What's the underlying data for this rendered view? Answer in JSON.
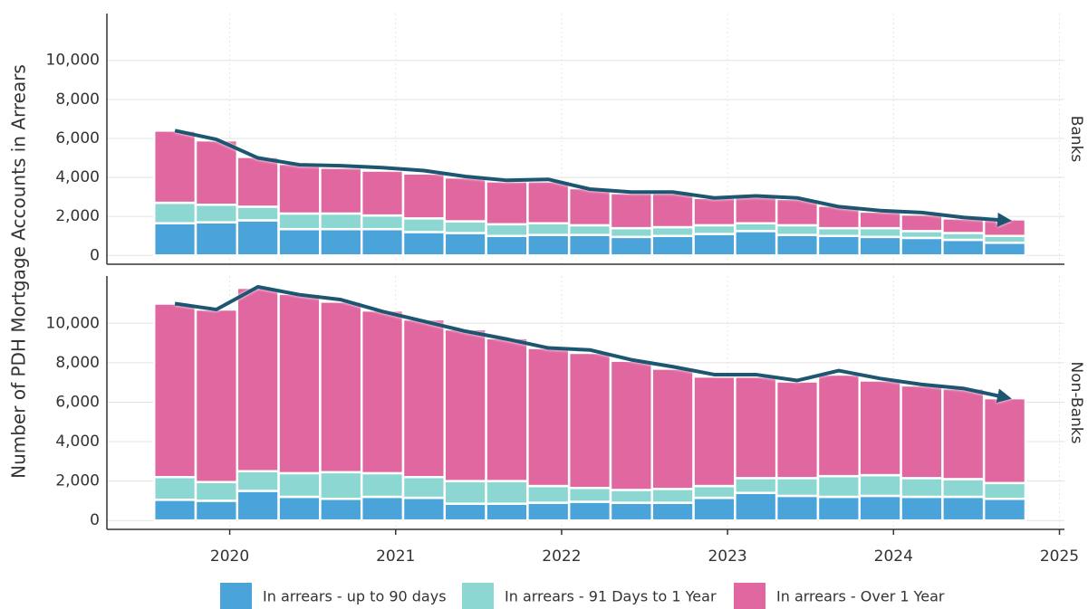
{
  "y_label": "Number of PDH Mortgage Accounts in Arrears",
  "chart_data": [
    {
      "type": "bar",
      "stacked": true,
      "panel": "Banks",
      "x": [
        2019.67,
        2019.92,
        2020.17,
        2020.42,
        2020.67,
        2020.92,
        2021.17,
        2021.42,
        2021.67,
        2021.92,
        2022.17,
        2022.42,
        2022.67,
        2022.92,
        2023.17,
        2023.42,
        2023.67,
        2023.92,
        2024.17,
        2024.42,
        2024.67
      ],
      "series": [
        {
          "name": "In arrears - up to 90 days",
          "color": "#4aa3d9",
          "values": [
            1650,
            1700,
            1800,
            1350,
            1350,
            1350,
            1200,
            1150,
            1000,
            1050,
            1050,
            950,
            1000,
            1100,
            1250,
            1050,
            1000,
            950,
            900,
            800,
            650
          ]
        },
        {
          "name": "In arrears - 91 Days to 1 Year",
          "color": "#8dd7d3",
          "values": [
            1050,
            900,
            700,
            800,
            800,
            700,
            700,
            600,
            600,
            600,
            500,
            450,
            450,
            450,
            400,
            500,
            400,
            450,
            350,
            350,
            350
          ]
        },
        {
          "name": "In arrears - Over 1 Year",
          "color": "#e0679f",
          "values": [
            3700,
            3300,
            2550,
            2550,
            2350,
            2300,
            2300,
            2250,
            2200,
            2150,
            1900,
            1800,
            1750,
            1400,
            1350,
            1350,
            1150,
            850,
            850,
            750,
            850
          ]
        }
      ],
      "trend": [
        6400,
        5950,
        5000,
        4650,
        4600,
        4500,
        4350,
        4050,
        3850,
        3900,
        3400,
        3250,
        3250,
        2950,
        3050,
        2950,
        2500,
        2300,
        2200,
        1950,
        1800
      ],
      "trend_color": "#1c5670",
      "xlim": [
        2019.26,
        2025.03
      ],
      "xticks": [
        2020,
        2021,
        2022,
        2023,
        2024,
        2025
      ],
      "ylim": [
        -450,
        12400
      ],
      "yticks": [
        0,
        {
          "value": 2000,
          "label": "2,000"
        },
        {
          "value": 4000,
          "label": "4,000"
        },
        {
          "value": 6000,
          "label": "6,000"
        },
        {
          "value": 8000,
          "label": "8,000"
        },
        {
          "value": 10000,
          "label": "10,000"
        }
      ],
      "grid": true
    },
    {
      "type": "bar",
      "stacked": true,
      "panel": "Non-Banks",
      "x": [
        2019.67,
        2019.92,
        2020.17,
        2020.42,
        2020.67,
        2020.92,
        2021.17,
        2021.42,
        2021.67,
        2021.92,
        2022.17,
        2022.42,
        2022.67,
        2022.92,
        2023.17,
        2023.42,
        2023.67,
        2023.92,
        2024.17,
        2024.42,
        2024.67
      ],
      "series": [
        {
          "color": "#4aa3d9",
          "values": [
            1050,
            1000,
            1500,
            1200,
            1100,
            1200,
            1150,
            850,
            850,
            900,
            950,
            900,
            900,
            1150,
            1400,
            1250,
            1200,
            1250,
            1200,
            1200,
            1100
          ]
        },
        {
          "color": "#8dd7d3",
          "values": [
            1150,
            950,
            1000,
            1200,
            1350,
            1200,
            1050,
            1150,
            1150,
            850,
            700,
            650,
            700,
            600,
            750,
            900,
            1050,
            1050,
            950,
            900,
            800
          ]
        },
        {
          "color": "#e0679f",
          "values": [
            8800,
            8750,
            9300,
            9100,
            8650,
            8250,
            8000,
            7700,
            7250,
            7000,
            6850,
            6550,
            6100,
            5550,
            5150,
            4900,
            5150,
            4800,
            4700,
            4600,
            4300
          ]
        }
      ],
      "trend": [
        11000,
        10700,
        11850,
        11450,
        11200,
        10600,
        10100,
        9600,
        9200,
        8750,
        8650,
        8150,
        7800,
        7400,
        7400,
        7100,
        7600,
        7200,
        6900,
        6700,
        6250
      ],
      "trend_color": "#1c5670",
      "xlim": [
        2019.26,
        2025.03
      ],
      "xticks": [
        2020,
        2021,
        2022,
        2023,
        2024,
        2025
      ],
      "ylim": [
        -450,
        12400
      ],
      "yticks": [
        0,
        {
          "value": 2000,
          "label": "2,000"
        },
        {
          "value": 4000,
          "label": "4,000"
        },
        {
          "value": 6000,
          "label": "6,000"
        },
        {
          "value": 8000,
          "label": "8,000"
        },
        {
          "value": 10000,
          "label": "10,000"
        }
      ],
      "grid": true
    }
  ]
}
